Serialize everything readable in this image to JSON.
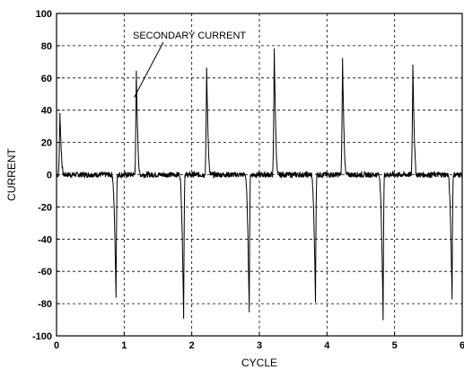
{
  "chart_data": {
    "type": "line",
    "title": "",
    "xlabel": "CYCLE",
    "ylabel": "CURRENT",
    "xlim": [
      0,
      6
    ],
    "ylim": [
      -100,
      100
    ],
    "x_ticks": [
      0,
      1,
      2,
      3,
      4,
      5,
      6
    ],
    "y_ticks": [
      -100,
      -80,
      -60,
      -40,
      -20,
      0,
      20,
      40,
      60,
      80,
      100
    ],
    "grid": true,
    "grid_style": "dashed",
    "line_color": "#000000",
    "annotations": [
      {
        "text": "SECONDARY CURRENT",
        "arrow_to": {
          "x": 1.15,
          "y": 48
        },
        "label_at": {
          "x": 1.1,
          "y": 86
        }
      }
    ],
    "series": [
      {
        "spikes": [
          {
            "x": 0.05,
            "y": 38
          },
          {
            "x": 0.88,
            "y": -76
          },
          {
            "x": 1.18,
            "y": 63
          },
          {
            "x": 1.88,
            "y": -89
          },
          {
            "x": 2.22,
            "y": 66
          },
          {
            "x": 2.85,
            "y": -85
          },
          {
            "x": 3.22,
            "y": 78
          },
          {
            "x": 3.83,
            "y": -79
          },
          {
            "x": 4.23,
            "y": 72
          },
          {
            "x": 4.83,
            "y": -90
          },
          {
            "x": 5.27,
            "y": 68
          },
          {
            "x": 5.85,
            "y": -77
          }
        ],
        "baseline": 0
      }
    ]
  }
}
